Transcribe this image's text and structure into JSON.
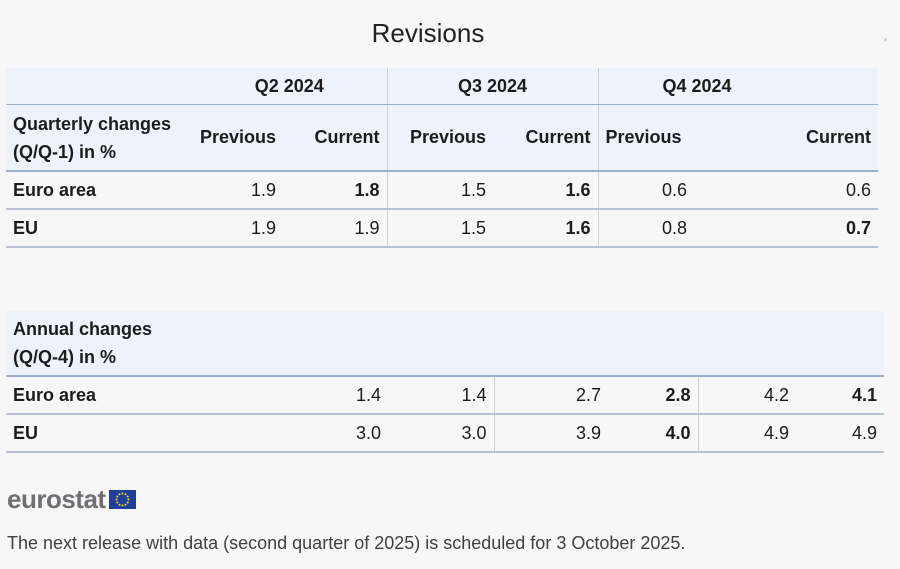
{
  "title": "Revisions",
  "quarterly": {
    "label_line1": "Quarterly changes",
    "label_line2": "(Q/Q-1) in %",
    "quarters": [
      "Q2 2024",
      "Q3 2024",
      "Q4 2024"
    ],
    "prev_label": "Previous",
    "curr_label": "Current",
    "rows": [
      {
        "label": "Euro area",
        "cells": [
          "1.9",
          "1.8",
          "1.5",
          "1.6",
          "0.6",
          "0.6"
        ]
      },
      {
        "label": "EU",
        "cells": [
          "1.9",
          "1.9",
          "1.5",
          "1.6",
          "0.8",
          "0.7"
        ]
      }
    ]
  },
  "annual": {
    "label_line1": "Annual changes",
    "label_line2": "(Q/Q-4) in %",
    "rows": [
      {
        "label": "Euro area",
        "cells": [
          "1.4",
          "1.4",
          "2.7",
          "2.8",
          "4.2",
          "4.1"
        ]
      },
      {
        "label": "EU",
        "cells": [
          "3.0",
          "3.0",
          "3.9",
          "4.0",
          "4.9",
          "4.9"
        ]
      }
    ]
  },
  "footer": {
    "logo": "eurostat",
    "note": "The next release with data (second quarter of 2025) is scheduled for 3 October 2025."
  },
  "colors": {
    "header_band": "#eef2fa",
    "rule": "#9aaed0",
    "flag_blue": "#1f3f99",
    "flag_star": "#ffd617"
  }
}
